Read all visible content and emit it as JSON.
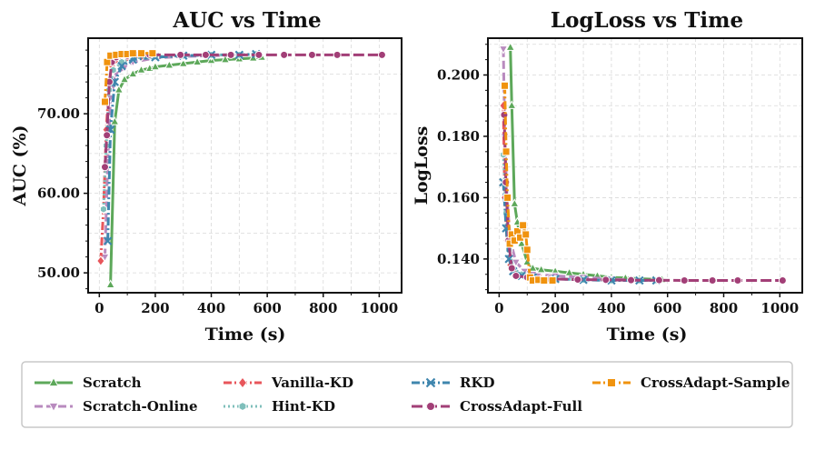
{
  "chart_data": [
    {
      "type": "line",
      "title": "AUC vs Time",
      "xlabel": "Time (s)",
      "ylabel": "AUC (%)",
      "xlim": [
        -40,
        1080
      ],
      "ylim": [
        47.5,
        79.5
      ],
      "xticks": [
        0,
        200,
        400,
        600,
        800,
        1000
      ],
      "xtick_labels": [
        "0",
        "200",
        "400",
        "600",
        "800",
        "1000"
      ],
      "yticks": [
        50,
        60,
        70
      ],
      "ytick_labels": [
        "50.00",
        "60.00",
        "70.00"
      ],
      "grid": true,
      "series": [
        {
          "name": "Scratch",
          "x": [
            40,
            55,
            70,
            90,
            120,
            150,
            180,
            200,
            250,
            300,
            350,
            400,
            450,
            500,
            550,
            580
          ],
          "y": [
            48.5,
            69,
            73,
            74.3,
            75,
            75.5,
            75.7,
            75.9,
            76.1,
            76.3,
            76.5,
            76.7,
            76.8,
            76.9,
            77.0,
            77.1
          ]
        },
        {
          "name": "Scratch-Online",
          "x": [
            20,
            30,
            40,
            60,
            90,
            120,
            200,
            300,
            400,
            500
          ],
          "y": [
            52,
            64,
            72,
            75,
            75.8,
            76.5,
            77,
            77.2,
            77.3,
            77.4
          ]
        },
        {
          "name": "Vanilla-KD",
          "x": [
            5,
            15,
            25,
            35,
            45,
            60,
            100,
            150,
            200
          ],
          "y": [
            51.5,
            58,
            68,
            74,
            76,
            76.8,
            77.1,
            77.2,
            77.3
          ]
        },
        {
          "name": "Hint-KD",
          "x": [
            15,
            25,
            35,
            50,
            80,
            120,
            200,
            300,
            400,
            500,
            560
          ],
          "y": [
            58,
            66,
            73,
            75.5,
            76.5,
            77,
            77.2,
            77.3,
            77.4,
            77.4,
            77.5
          ]
        },
        {
          "name": "RKD",
          "x": [
            30,
            40,
            55,
            80,
            120,
            200,
            300,
            400,
            500,
            560
          ],
          "y": [
            54,
            68,
            74,
            76,
            76.8,
            77.1,
            77.3,
            77.4,
            77.4,
            77.5
          ]
        },
        {
          "name": "CrossAdapt-Full",
          "x": [
            20,
            27,
            36,
            45,
            60,
            100,
            180,
            290,
            380,
            470,
            570,
            660,
            760,
            850,
            1010
          ],
          "y": [
            63.3,
            67.3,
            74,
            76.5,
            77.1,
            77.3,
            77.4,
            77.4,
            77.4,
            77.4,
            77.4,
            77.4,
            77.4,
            77.4,
            77.4
          ]
        },
        {
          "name": "CrossAdapt-Sample",
          "x": [
            20,
            28,
            40,
            60,
            80,
            100,
            120,
            150,
            190
          ],
          "y": [
            71.5,
            76.5,
            77.3,
            77.4,
            77.5,
            77.5,
            77.6,
            77.6,
            77.6
          ]
        }
      ]
    },
    {
      "type": "line",
      "title": "LogLoss vs Time",
      "xlabel": "Time (s)",
      "ylabel": "LogLoss",
      "xlim": [
        -40,
        1080
      ],
      "ylim": [
        0.129,
        0.212
      ],
      "xticks": [
        0,
        200,
        400,
        600,
        800,
        1000
      ],
      "xtick_labels": [
        "0",
        "200",
        "400",
        "600",
        "800",
        "1000"
      ],
      "yticks": [
        0.14,
        0.16,
        0.18,
        0.2
      ],
      "ytick_labels": [
        "0.140",
        "0.160",
        "0.180",
        "0.200"
      ],
      "grid": true,
      "series": [
        {
          "name": "Scratch",
          "x": [
            40,
            45,
            55,
            65,
            80,
            100,
            120,
            150,
            200,
            250,
            300,
            350,
            400,
            450,
            500,
            550,
            580
          ],
          "y": [
            0.209,
            0.19,
            0.158,
            0.152,
            0.145,
            0.139,
            0.137,
            0.1365,
            0.136,
            0.1355,
            0.135,
            0.1345,
            0.134,
            0.1338,
            0.1336,
            0.1334,
            0.1333
          ]
        },
        {
          "name": "Scratch-Online",
          "x": [
            15,
            20,
            28,
            40,
            60,
            90,
            120,
            200,
            300,
            400,
            500
          ],
          "y": [
            0.2085,
            0.18,
            0.16,
            0.146,
            0.139,
            0.136,
            0.135,
            0.1345,
            0.134,
            0.1335,
            0.133
          ]
        },
        {
          "name": "Vanilla-KD",
          "x": [
            15,
            20,
            28,
            40,
            60,
            100,
            150,
            200
          ],
          "y": [
            0.19,
            0.16,
            0.146,
            0.138,
            0.135,
            0.134,
            0.1335,
            0.133
          ]
        },
        {
          "name": "Hint-KD",
          "x": [
            15,
            25,
            35,
            50,
            80,
            120,
            200,
            300,
            400,
            500,
            560
          ],
          "y": [
            0.174,
            0.155,
            0.143,
            0.137,
            0.135,
            0.134,
            0.1335,
            0.1332,
            0.133,
            0.133,
            0.133
          ]
        },
        {
          "name": "RKD",
          "x": [
            15,
            25,
            35,
            50,
            80,
            120,
            200,
            300,
            400,
            500,
            560
          ],
          "y": [
            0.165,
            0.15,
            0.14,
            0.136,
            0.1345,
            0.134,
            0.1335,
            0.1332,
            0.133,
            0.133,
            0.133
          ]
        },
        {
          "name": "CrossAdapt-Full",
          "x": [
            18,
            24,
            33,
            45,
            60,
            100,
            180,
            280,
            380,
            470,
            570,
            660,
            760,
            850,
            1010
          ],
          "y": [
            0.187,
            0.165,
            0.146,
            0.137,
            0.1345,
            0.134,
            0.1335,
            0.1333,
            0.1332,
            0.1331,
            0.1331,
            0.133,
            0.133,
            0.133,
            0.133
          ]
        },
        {
          "name": "CrossAdapt-Sample",
          "x": [
            20,
            25,
            30,
            38,
            45,
            55,
            65,
            75,
            85,
            95,
            100,
            110,
            120,
            140,
            160,
            190
          ],
          "y": [
            0.1965,
            0.175,
            0.16,
            0.145,
            0.148,
            0.146,
            0.149,
            0.147,
            0.151,
            0.148,
            0.143,
            0.134,
            0.133,
            0.1332,
            0.133,
            0.133
          ]
        }
      ]
    }
  ],
  "legend": {
    "placement": "bottom",
    "entries": [
      {
        "name": "Scratch",
        "color": "#5da85a",
        "dash": "solid",
        "marker": "triangle-up"
      },
      {
        "name": "Scratch-Online",
        "color": "#b98bbf",
        "dash": "dash",
        "marker": "triangle-down"
      },
      {
        "name": "Vanilla-KD",
        "color": "#e8565b",
        "dash": "dashdot",
        "marker": "diamond"
      },
      {
        "name": "Hint-KD",
        "color": "#7fbfbb",
        "dash": "dot",
        "marker": "hexagon"
      },
      {
        "name": "RKD",
        "color": "#3f86ae",
        "dash": "dashdot",
        "marker": "x"
      },
      {
        "name": "CrossAdapt-Full",
        "color": "#a23f77",
        "dash": "longdash",
        "marker": "circle"
      },
      {
        "name": "CrossAdapt-Sample",
        "color": "#f0930e",
        "dash": "dashdot",
        "marker": "square"
      }
    ]
  }
}
